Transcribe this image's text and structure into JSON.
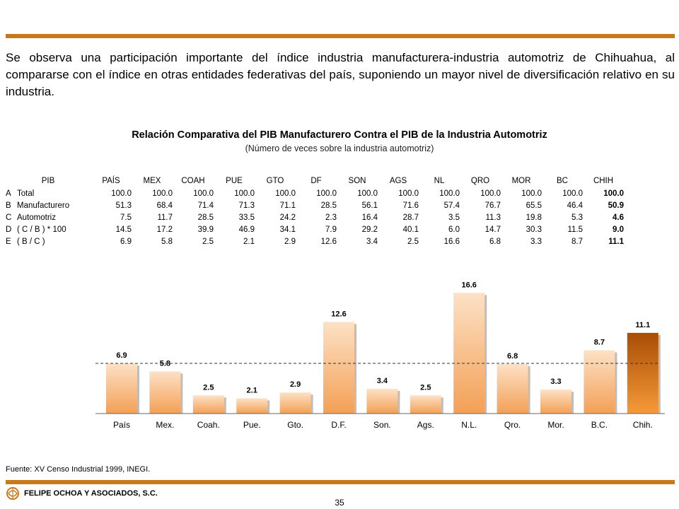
{
  "paragraph": "Se observa una participación importante del índice industria manufacturera-industria automotriz de Chihuahua, al compararse con el índice en otras entidades federativas del país, suponiendo un mayor nivel de diversificación relativo en su industria.",
  "title": "Relación Comparativa del PIB Manufacturero Contra el PIB de la Industria Automotriz",
  "subtitle": "(Número de veces sobre la industria automotriz)",
  "table": {
    "header_label": "PIB",
    "columns": [
      "PAÍS",
      "MEX",
      "COAH",
      "PUE",
      "GTO",
      "DF",
      "SON",
      "AGS",
      "NL",
      "QRO",
      "MOR",
      "BC",
      "CHIH"
    ],
    "rows": [
      {
        "code": "A",
        "label": "Total",
        "values": [
          "100.0",
          "100.0",
          "100.0",
          "100.0",
          "100.0",
          "100.0",
          "100.0",
          "100.0",
          "100.0",
          "100.0",
          "100.0",
          "100.0",
          "100.0"
        ]
      },
      {
        "code": "B",
        "label": "Manufacturero",
        "values": [
          "51.3",
          "68.4",
          "71.4",
          "71.3",
          "71.1",
          "28.5",
          "56.1",
          "71.6",
          "57.4",
          "76.7",
          "65.5",
          "46.4",
          "50.9"
        ]
      },
      {
        "code": "C",
        "label": "Automotriz",
        "values": [
          "7.5",
          "11.7",
          "28.5",
          "33.5",
          "24.2",
          "2.3",
          "16.4",
          "28.7",
          "3.5",
          "11.3",
          "19.8",
          "5.3",
          "4.6"
        ]
      },
      {
        "code": "D",
        "label": "( C / B ) * 100",
        "values": [
          "14.5",
          "17.2",
          "39.9",
          "46.9",
          "34.1",
          "7.9",
          "29.2",
          "40.1",
          "6.0",
          "14.7",
          "30.3",
          "11.5",
          "9.0"
        ]
      },
      {
        "code": "E",
        "label": "( B / C )",
        "values": [
          "6.9",
          "5.8",
          "2.5",
          "2.1",
          "2.9",
          "12.6",
          "3.4",
          "2.5",
          "16.6",
          "6.8",
          "3.3",
          "8.7",
          "11.1"
        ]
      }
    ]
  },
  "chart_data": {
    "type": "bar",
    "categories": [
      "País",
      "Mex.",
      "Coah.",
      "Pue.",
      "Gto.",
      "D.F.",
      "Son.",
      "Ags.",
      "N.L.",
      "Qro.",
      "Mor.",
      "B.C.",
      "Chih."
    ],
    "values": [
      6.9,
      5.8,
      2.5,
      2.1,
      2.9,
      12.6,
      3.4,
      2.5,
      16.6,
      6.8,
      3.3,
      8.7,
      11.1
    ],
    "labels": [
      "6.9",
      "5.8",
      "2.5",
      "2.1",
      "2.9",
      "12.6",
      "3.4",
      "2.5",
      "16.6",
      "6.8",
      "3.3",
      "8.7",
      "11.1"
    ],
    "reference_line": 6.9,
    "highlight_category": "Chih.",
    "ylim": [
      0,
      17.5
    ],
    "colors": {
      "bar_top": "#fde1c6",
      "bar_bottom": "#f3a055",
      "highlight_top": "#a94d05",
      "highlight_bottom": "#f69a38",
      "axis": "#666666"
    }
  },
  "footer": {
    "source": "Fuente: XV Censo Industrial 1999, INEGI.",
    "company": "FELIPE OCHOA Y ASOCIADOS, S.C.",
    "page": "35"
  },
  "colors": {
    "rule": "#c87a1a"
  }
}
